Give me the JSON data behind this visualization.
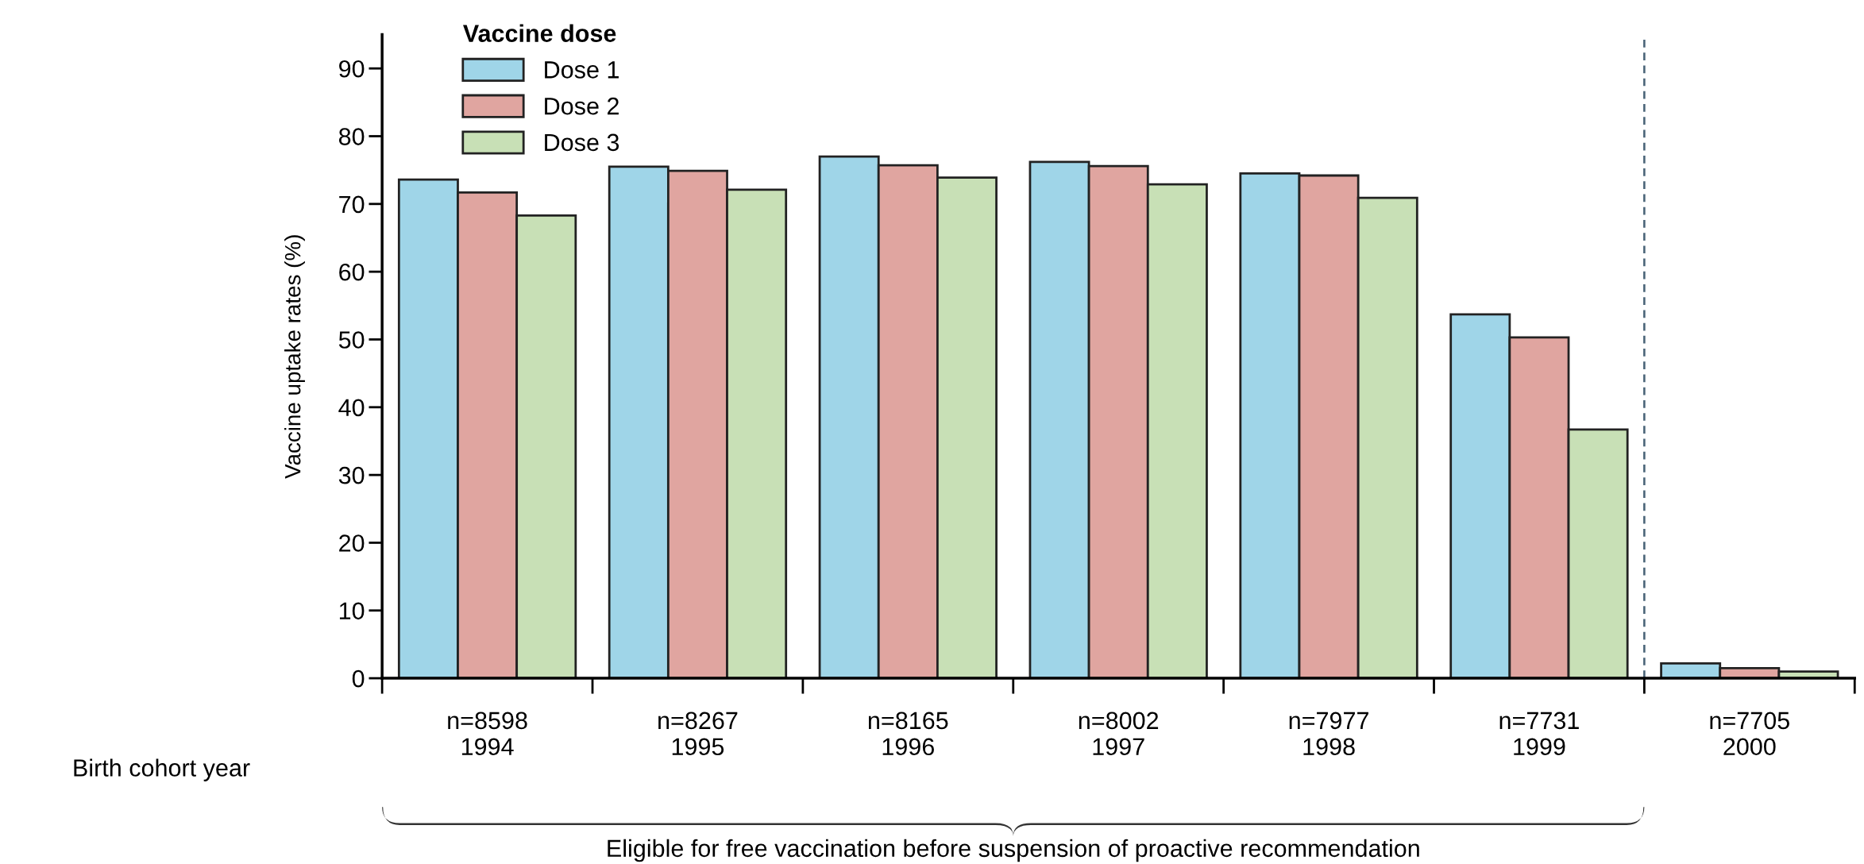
{
  "chart_data": {
    "type": "bar",
    "ylabel": "Vaccine uptake rates (%)",
    "xlabel": "Birth cohort year",
    "legend_title": "Vaccine dose",
    "legend": "top left",
    "categories": [
      "n=8598\n1994",
      "n=8267\n1995",
      "n=8165\n1996",
      "n=8002\n1997",
      "n=7977\n1998",
      "n=7731\n1999",
      "n=7705\n2000"
    ],
    "series": [
      {
        "name": "Dose 1",
        "color": "#9fd5e8",
        "values": [
          73.6,
          75.5,
          77.0,
          76.2,
          74.5,
          53.7,
          2.2
        ]
      },
      {
        "name": "Dose 2",
        "color": "#e0a5a0",
        "values": [
          71.7,
          74.9,
          75.7,
          75.6,
          74.2,
          50.3,
          1.5
        ]
      },
      {
        "name": "Dose 3",
        "color": "#c8e0b6",
        "values": [
          68.3,
          72.1,
          73.9,
          72.9,
          70.9,
          36.7,
          1.0
        ]
      }
    ],
    "ylim": [
      0,
      95
    ],
    "yticks": [
      0,
      10,
      20,
      30,
      40,
      50,
      60,
      70,
      80,
      90
    ],
    "grid": false,
    "annotations": [
      "Eligible for free vaccination before suspension of proactive recommendation"
    ]
  }
}
